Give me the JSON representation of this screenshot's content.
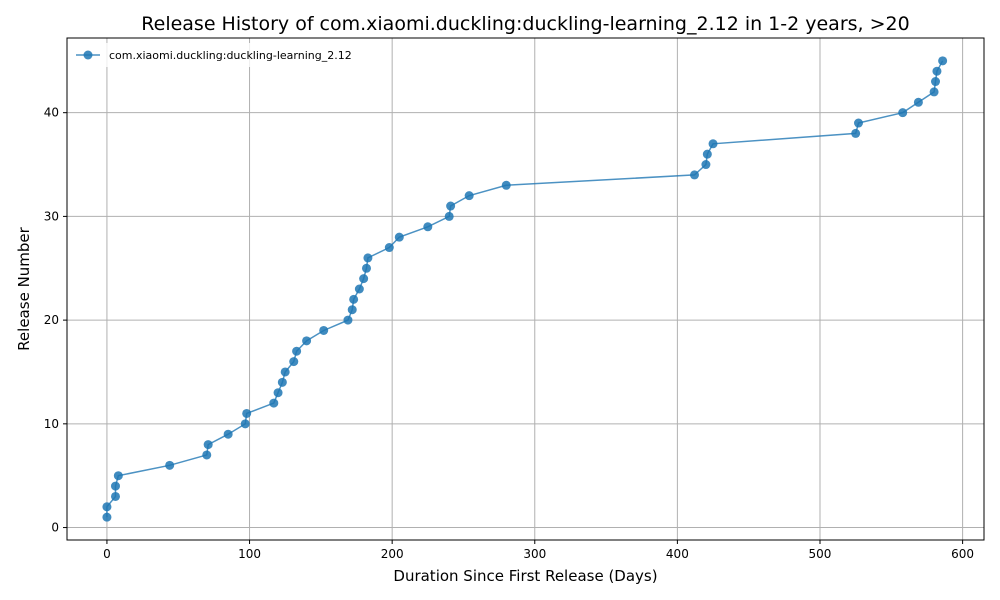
{
  "chart_data": {
    "type": "line",
    "title": "Release History of com.xiaomi.duckling:duckling-learning_2.12 in 1-2 years, >20",
    "xlabel": "Duration Since First Release (Days)",
    "ylabel": "Release Number",
    "xlim": [
      -28,
      615
    ],
    "ylim": [
      -1.2,
      47.2
    ],
    "xticks": [
      0,
      100,
      200,
      300,
      400,
      500,
      600
    ],
    "yticks": [
      0,
      10,
      20,
      30,
      40
    ],
    "grid": true,
    "legend_position": "top-left",
    "series": [
      {
        "name": "com.xiaomi.duckling:duckling-learning_2.12",
        "color": "#1f77b4",
        "marker": "circle",
        "x": [
          0,
          0,
          6,
          6,
          8,
          44,
          70,
          71,
          85,
          97,
          98,
          117,
          120,
          123,
          125,
          131,
          133,
          140,
          152,
          169,
          172,
          173,
          177,
          180,
          182,
          183,
          198,
          205,
          225,
          240,
          241,
          254,
          280,
          412,
          420,
          421,
          425,
          525,
          527,
          558,
          569,
          580,
          581,
          582,
          586
        ],
        "y": [
          1,
          2,
          3,
          4,
          5,
          6,
          7,
          8,
          9,
          10,
          11,
          12,
          13,
          14,
          15,
          16,
          17,
          18,
          19,
          20,
          21,
          22,
          23,
          24,
          25,
          26,
          27,
          28,
          29,
          30,
          31,
          32,
          33,
          34,
          35,
          36,
          37,
          38,
          39,
          40,
          41,
          42,
          43,
          44,
          45
        ]
      }
    ]
  }
}
